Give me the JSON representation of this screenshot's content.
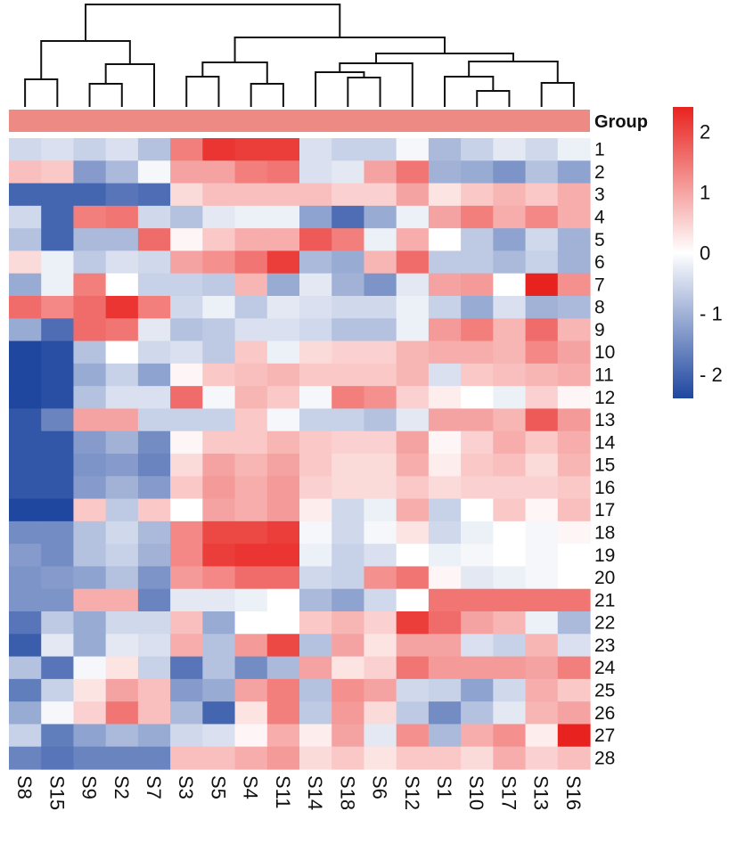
{
  "chart_data": {
    "type": "heatmap",
    "title": "",
    "columns": [
      "S8",
      "S15",
      "S9",
      "S2",
      "S7",
      "S3",
      "S5",
      "S4",
      "S11",
      "S14",
      "S18",
      "S6",
      "S12",
      "S1",
      "S10",
      "S17",
      "S13",
      "S16"
    ],
    "rows": [
      "1",
      "2",
      "3",
      "4",
      "5",
      "6",
      "7",
      "8",
      "9",
      "10",
      "11",
      "12",
      "13",
      "14",
      "15",
      "16",
      "17",
      "18",
      "19",
      "20",
      "21",
      "22",
      "23",
      "24",
      "25",
      "26",
      "27",
      "28"
    ],
    "annotation": {
      "label": "Group",
      "color": "#ee8a84"
    },
    "values": [
      [
        -0.5,
        -0.4,
        -0.6,
        -0.4,
        -0.8,
        1.4,
        2.2,
        2.1,
        2.1,
        -0.4,
        -0.6,
        -0.6,
        -0.1,
        -0.9,
        -0.6,
        -0.3,
        -0.5,
        -0.2
      ],
      [
        0.7,
        0.6,
        -1.3,
        -0.9,
        -0.1,
        1.0,
        1.0,
        1.4,
        1.5,
        -0.4,
        -0.3,
        1.0,
        1.5,
        -1.0,
        -1.1,
        -1.4,
        -0.8,
        -1.2
      ],
      [
        -2.0,
        -2.0,
        -2.0,
        -1.8,
        -1.9,
        0.4,
        0.7,
        0.7,
        0.7,
        0.7,
        0.5,
        0.5,
        1.0,
        0.3,
        0.6,
        0.8,
        0.6,
        0.9
      ],
      [
        -0.5,
        -2.0,
        1.4,
        1.5,
        -0.5,
        -0.8,
        -0.3,
        -0.2,
        -0.2,
        -1.2,
        -1.9,
        -1.1,
        -0.2,
        1.0,
        1.4,
        0.9,
        1.3,
        0.9
      ],
      [
        -0.8,
        -2.0,
        -0.9,
        -0.9,
        1.6,
        0.1,
        0.6,
        0.9,
        0.9,
        1.8,
        1.4,
        -0.2,
        0.9,
        0.0,
        -0.7,
        -1.2,
        -0.5,
        -1.0
      ],
      [
        0.4,
        -0.2,
        -0.7,
        -0.4,
        -0.5,
        1.0,
        1.2,
        1.5,
        2.1,
        -0.9,
        -1.1,
        0.8,
        1.6,
        -0.7,
        -0.7,
        -0.9,
        -0.6,
        -1.0
      ],
      [
        -1.1,
        -0.2,
        1.4,
        0.0,
        -0.6,
        -0.6,
        -0.7,
        0.8,
        -1.1,
        -0.3,
        -1.0,
        -1.4,
        -0.3,
        1.0,
        1.1,
        0.0,
        2.4,
        1.2
      ],
      [
        1.6,
        1.3,
        1.6,
        2.2,
        1.4,
        -0.5,
        -0.2,
        -0.7,
        -0.3,
        -0.4,
        -0.5,
        -0.5,
        -0.2,
        -0.6,
        -1.1,
        -0.4,
        -1.0,
        -0.9
      ],
      [
        -1.1,
        -1.9,
        1.6,
        1.5,
        -0.3,
        -0.8,
        -0.7,
        -0.4,
        -0.4,
        -0.5,
        -0.8,
        -0.8,
        -0.2,
        1.1,
        1.4,
        0.8,
        1.6,
        0.8
      ],
      [
        -2.4,
        -2.3,
        -0.8,
        0.0,
        -0.5,
        -0.4,
        -0.7,
        0.6,
        -0.2,
        0.4,
        0.5,
        0.5,
        0.8,
        0.9,
        0.9,
        0.8,
        1.3,
        1.0
      ],
      [
        -2.4,
        -2.3,
        -1.1,
        -0.6,
        -1.2,
        0.1,
        0.6,
        0.7,
        0.8,
        0.6,
        0.6,
        0.6,
        0.8,
        -0.4,
        0.6,
        0.7,
        0.8,
        0.9
      ],
      [
        -2.4,
        -2.3,
        -0.8,
        -0.4,
        -0.4,
        1.6,
        -0.1,
        0.8,
        0.6,
        -0.1,
        1.4,
        1.2,
        0.5,
        0.2,
        0.0,
        -0.2,
        0.5,
        0.1
      ],
      [
        -2.2,
        -1.6,
        1.0,
        1.0,
        -0.6,
        -0.6,
        -0.6,
        0.6,
        -0.1,
        -0.6,
        -0.6,
        -0.8,
        -0.3,
        1.0,
        1.0,
        0.8,
        1.8,
        1.1
      ],
      [
        -2.2,
        -2.2,
        -1.3,
        -1.0,
        -1.5,
        0.1,
        0.6,
        0.6,
        0.8,
        0.6,
        0.5,
        0.5,
        1.0,
        0.1,
        0.5,
        0.9,
        0.6,
        0.9
      ],
      [
        -2.2,
        -2.2,
        -1.4,
        -1.3,
        -1.6,
        0.4,
        1.0,
        0.8,
        1.0,
        0.6,
        0.4,
        0.4,
        0.9,
        0.2,
        0.6,
        0.7,
        0.4,
        0.8
      ],
      [
        -2.2,
        -2.2,
        -1.3,
        -1.0,
        -1.3,
        0.6,
        1.1,
        0.9,
        1.1,
        0.5,
        0.4,
        0.4,
        0.6,
        0.4,
        0.5,
        0.5,
        0.5,
        0.6
      ],
      [
        -2.4,
        -2.4,
        0.6,
        -0.7,
        0.6,
        0.0,
        1.0,
        0.9,
        1.1,
        0.2,
        -0.5,
        -0.2,
        0.9,
        -0.6,
        0.0,
        0.6,
        0.1,
        0.7
      ],
      [
        -1.5,
        -1.5,
        -0.8,
        -0.5,
        -0.9,
        1.3,
        2.0,
        2.0,
        2.1,
        -0.1,
        -0.5,
        -0.1,
        0.3,
        -0.5,
        -0.2,
        0.0,
        -0.1,
        0.1
      ],
      [
        -1.3,
        -1.5,
        -0.8,
        -0.6,
        -1.0,
        1.3,
        2.1,
        2.2,
        2.2,
        -0.2,
        -0.6,
        -0.4,
        0.0,
        -0.2,
        -0.1,
        0.0,
        -0.1,
        0.0
      ],
      [
        -1.4,
        -1.3,
        -1.2,
        -0.8,
        -1.4,
        1.1,
        1.3,
        1.6,
        1.6,
        -0.5,
        -0.6,
        1.2,
        1.5,
        0.1,
        -0.3,
        -0.2,
        -0.1,
        0.0
      ],
      [
        -1.4,
        -1.4,
        0.9,
        0.9,
        -1.6,
        -0.3,
        -0.3,
        -0.2,
        0.0,
        -0.9,
        -1.2,
        -0.5,
        0.0,
        1.5,
        1.5,
        1.5,
        1.5,
        1.5
      ],
      [
        -1.8,
        -0.7,
        -1.1,
        -0.5,
        -0.5,
        0.7,
        -1.1,
        0.0,
        0.0,
        0.6,
        0.8,
        0.5,
        2.1,
        1.6,
        1.0,
        0.8,
        -0.2,
        -0.9
      ],
      [
        -2.1,
        -0.3,
        -1.1,
        -0.3,
        -0.4,
        0.9,
        -0.8,
        1.1,
        2.0,
        -0.8,
        1.0,
        0.3,
        1.0,
        1.0,
        -0.4,
        -0.6,
        0.8,
        -0.4
      ],
      [
        -0.8,
        -1.8,
        -0.1,
        0.3,
        -0.6,
        -1.8,
        -0.8,
        -1.5,
        -0.9,
        1.0,
        0.3,
        0.5,
        1.5,
        1.1,
        1.1,
        1.1,
        1.0,
        1.4
      ],
      [
        -1.7,
        -0.6,
        0.3,
        1.0,
        0.7,
        -1.3,
        -1.1,
        1.0,
        1.4,
        -0.8,
        1.2,
        1.0,
        -0.5,
        -0.6,
        -1.2,
        -0.5,
        0.9,
        0.6
      ],
      [
        -1.1,
        -0.1,
        0.5,
        1.5,
        0.7,
        -0.9,
        -2.0,
        0.3,
        1.4,
        -0.7,
        1.1,
        0.4,
        -0.7,
        -1.5,
        -0.8,
        -0.3,
        0.8,
        1.0
      ],
      [
        -0.6,
        -1.7,
        -1.2,
        -0.9,
        -1.1,
        -0.5,
        -0.4,
        0.1,
        0.9,
        0.2,
        1.0,
        -0.3,
        1.2,
        -0.9,
        0.9,
        1.2,
        0.2,
        2.4
      ],
      [
        -1.6,
        -1.8,
        -1.6,
        -1.6,
        -1.6,
        0.7,
        0.7,
        0.9,
        1.1,
        0.4,
        0.6,
        0.3,
        0.6,
        0.6,
        0.4,
        0.9,
        0.5,
        0.7
      ]
    ],
    "colorscale": {
      "min": -2.4,
      "max": 2.4,
      "low": "#1f47a0",
      "mid": "#ffffff",
      "high": "#e8231f"
    },
    "legend": {
      "ticks": [
        "2",
        "1",
        "0",
        "- 1",
        "- 2"
      ],
      "tick_values": [
        2,
        1,
        0,
        -1,
        -2
      ],
      "placement": "right"
    },
    "dendrogram": "columns, top",
    "grid": false
  }
}
